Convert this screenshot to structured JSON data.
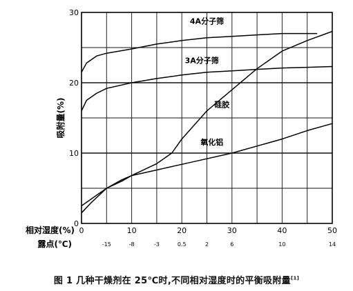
{
  "chart_data": {
    "type": "line",
    "ylabel": "吸附量(%)",
    "xlabel": "相对湿度(%)",
    "x2label": "露点(℃)",
    "xlim": [
      0,
      50
    ],
    "ylim": [
      0,
      30
    ],
    "x_ticks": [
      0,
      10,
      20,
      30,
      40,
      50
    ],
    "y_ticks": [
      0,
      10,
      20,
      30
    ],
    "dewpoint_ticks": [
      {
        "x": 5,
        "label": "-15"
      },
      {
        "x": 10,
        "label": "-8"
      },
      {
        "x": 15,
        "label": "-3"
      },
      {
        "x": 20,
        "label": "0.5"
      },
      {
        "x": 25,
        "label": "2"
      },
      {
        "x": 30,
        "label": "6"
      },
      {
        "x": 40,
        "label": "10"
      },
      {
        "x": 50,
        "label": "14"
      }
    ],
    "grid": true,
    "series": [
      {
        "name": "4A分子筛",
        "label_at": [
          25,
          28.4
        ],
        "x": [
          0,
          1,
          3,
          5,
          10,
          15,
          20,
          25,
          30,
          35,
          40,
          45,
          47
        ],
        "y": [
          21.5,
          22.8,
          23.8,
          24.2,
          24.8,
          25.5,
          26.0,
          26.4,
          26.6,
          26.8,
          27.0,
          27.0,
          27.0
        ]
      },
      {
        "name": "3A分子筛",
        "label_at": [
          24,
          22.8
        ],
        "x": [
          0,
          1,
          3,
          5,
          10,
          15,
          20,
          25,
          30,
          35,
          40,
          45,
          50
        ],
        "y": [
          16.0,
          17.5,
          18.5,
          19.2,
          20.0,
          20.6,
          21.1,
          21.5,
          21.7,
          21.9,
          22.1,
          22.2,
          22.3
        ]
      },
      {
        "name": "硅胶",
        "label_at": [
          28,
          16.5
        ],
        "x": [
          0,
          2,
          5,
          8,
          10,
          15,
          18,
          20,
          25,
          30,
          35,
          40,
          45,
          50
        ],
        "y": [
          2.5,
          3.5,
          5.0,
          6.0,
          6.8,
          8.5,
          10.0,
          12.0,
          16.0,
          19.0,
          22.0,
          24.5,
          26.0,
          27.3
        ]
      },
      {
        "name": "氧化铝",
        "label_at": [
          26,
          11.2
        ],
        "x": [
          0,
          2,
          5,
          8,
          10,
          15,
          20,
          25,
          30,
          35,
          40,
          45,
          50
        ],
        "y": [
          1.5,
          3.0,
          5.0,
          6.2,
          6.8,
          7.6,
          8.4,
          9.2,
          10.0,
          11.0,
          12.0,
          13.2,
          14.2
        ]
      }
    ]
  },
  "caption": {
    "text": "图 1  几种干燥剂在 25℃时,不同相对湿度时的平衡吸附量",
    "ref": "[1]"
  }
}
